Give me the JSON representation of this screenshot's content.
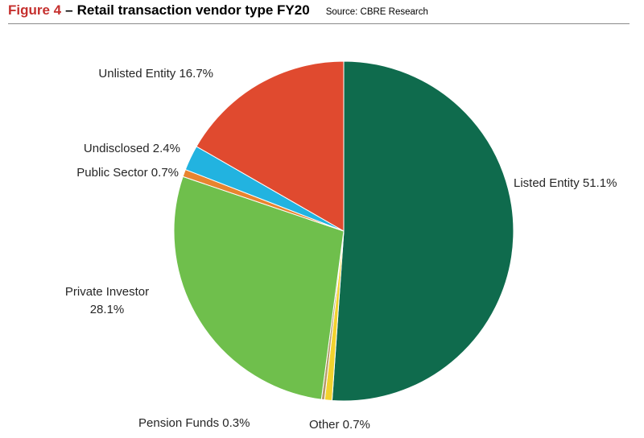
{
  "header": {
    "figure_label": "Figure 4",
    "dash": "–",
    "title": "Retail transaction vendor type FY20",
    "source": "Source: CBRE Research"
  },
  "chart_data": {
    "type": "pie",
    "title": "Retail transaction vendor type FY20",
    "start_angle_deg": 0,
    "direction": "clockwise",
    "slices": [
      {
        "name": "Listed Entity",
        "value": 51.1,
        "display": "Listed Entity 51.1%",
        "color": "#0f6b4d"
      },
      {
        "name": "Other",
        "value": 0.7,
        "display": "Other 0.7%",
        "color": "#f2d22e"
      },
      {
        "name": "Pension Funds",
        "value": 0.3,
        "display": "Pension Funds 0.3%",
        "color": "#b59a6a"
      },
      {
        "name": "Private Investor",
        "value": 28.1,
        "display_lines": [
          "Private Investor",
          "28.1%"
        ],
        "color": "#6fbf4c"
      },
      {
        "name": "Public Sector",
        "value": 0.7,
        "display": "Public Sector 0.7%",
        "color": "#e8842f"
      },
      {
        "name": "Undisclosed",
        "value": 2.4,
        "display": "Undisclosed 2.4%",
        "color": "#22b3e0"
      },
      {
        "name": "Unlisted Entity",
        "value": 16.7,
        "display": "Unlisted Entity 16.7%",
        "color": "#e04a2f"
      }
    ]
  },
  "colors": {
    "figure_label": "#c5302e",
    "rule": "#8a8a8a",
    "label_text": "#262626"
  }
}
